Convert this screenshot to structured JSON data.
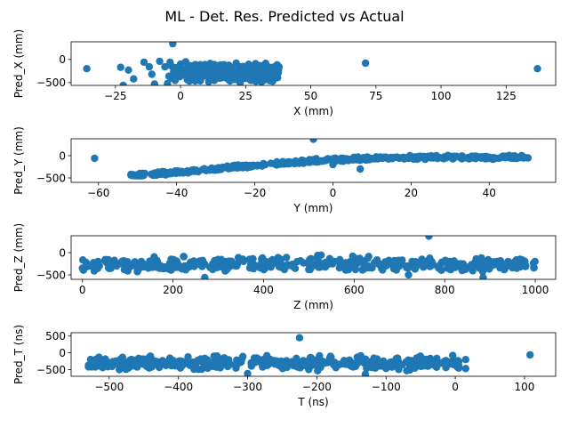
{
  "suptitle": "ML - Det. Res. Predicted vs Actual",
  "chart_data": [
    {
      "type": "scatter",
      "xlabel": "X (mm)",
      "ylabel": "Pred_X (mm)",
      "xlim": [
        -42,
        144
      ],
      "ylim": [
        -560,
        380
      ],
      "xticks": [
        -25,
        0,
        25,
        50,
        75,
        100,
        125
      ],
      "yticks": [
        0,
        -500
      ],
      "xtick_labels": [
        "−25",
        "0",
        "25",
        "50",
        "75",
        "100",
        "125"
      ],
      "ytick_labels": [
        "0",
        "−500"
      ],
      "color": "#1f77b4",
      "sample_points": [
        [
          -36,
          -200
        ],
        [
          -23,
          -170
        ],
        [
          -22,
          -560
        ],
        [
          -20,
          -230
        ],
        [
          -18,
          -420
        ],
        [
          -14,
          -60
        ],
        [
          -12,
          -160
        ],
        [
          -11,
          -320
        ],
        [
          -10,
          -530
        ],
        [
          -8,
          -40
        ],
        [
          -6,
          -160
        ],
        [
          -5,
          -520
        ],
        [
          -4,
          -60
        ],
        [
          -3,
          340
        ],
        [
          -2,
          -200
        ],
        [
          0,
          -100
        ],
        [
          2,
          -50
        ],
        [
          71,
          -80
        ],
        [
          137,
          -200
        ]
      ],
      "dense_region": {
        "x": [
          -5,
          38
        ],
        "y": [
          -560,
          0
        ]
      }
    },
    {
      "type": "scatter",
      "xlabel": "Y (mm)",
      "ylabel": "Pred_Y (mm)",
      "xlim": [
        -67,
        57
      ],
      "ylim": [
        -600,
        380
      ],
      "xticks": [
        -60,
        -40,
        -20,
        0,
        20,
        40
      ],
      "yticks": [
        0,
        -500
      ],
      "xtick_labels": [
        "−60",
        "−40",
        "−20",
        "0",
        "20",
        "40"
      ],
      "ytick_labels": [
        "0",
        "−500"
      ],
      "color": "#1f77b4",
      "sample_points": [
        [
          -61,
          -60
        ],
        [
          -5,
          370
        ],
        [
          7,
          -300
        ],
        [
          0,
          -200
        ]
      ],
      "trend_band": [
        [
          -52,
          -450
        ],
        [
          -40,
          -380
        ],
        [
          -20,
          -220
        ],
        [
          0,
          -90
        ],
        [
          20,
          -40
        ],
        [
          40,
          -40
        ],
        [
          51,
          -30
        ]
      ]
    },
    {
      "type": "scatter",
      "xlabel": "Z (mm)",
      "ylabel": "Pred_Z (mm)",
      "xlim": [
        -25,
        1045
      ],
      "ylim": [
        -600,
        380
      ],
      "xticks": [
        0,
        200,
        400,
        600,
        800,
        1000
      ],
      "yticks": [
        0,
        -500
      ],
      "xtick_labels": [
        "0",
        "200",
        "400",
        "600",
        "800",
        "1000"
      ],
      "ytick_labels": [
        "0",
        "−500"
      ],
      "color": "#1f77b4",
      "sample_points": [
        [
          765,
          370
        ],
        [
          270,
          -560
        ],
        [
          885,
          -560
        ],
        [
          720,
          -500
        ],
        [
          0,
          -350
        ]
      ],
      "dense_region": {
        "x": [
          0,
          1000
        ],
        "y": [
          -520,
          0
        ]
      }
    },
    {
      "type": "scatter",
      "xlabel": "T (ns)",
      "ylabel": "Pred_T (ns)",
      "xlim": [
        -555,
        145
      ],
      "ylim": [
        -700,
        600
      ],
      "xticks": [
        -500,
        -400,
        -300,
        -200,
        -100,
        0,
        100
      ],
      "yticks": [
        500,
        0,
        -500
      ],
      "xtick_labels": [
        "−500",
        "−400",
        "−300",
        "−200",
        "−100",
        "0",
        "100"
      ],
      "ytick_labels": [
        "500",
        "0",
        "−500"
      ],
      "color": "#1f77b4",
      "sample_points": [
        [
          -225,
          450
        ],
        [
          108,
          -60
        ],
        [
          -300,
          -620
        ],
        [
          -130,
          -640
        ],
        [
          -530,
          -420
        ],
        [
          15,
          -470
        ],
        [
          15,
          -200
        ]
      ],
      "dense_region": {
        "x": [
          -530,
          10
        ],
        "y": [
          -600,
          0
        ]
      }
    }
  ]
}
